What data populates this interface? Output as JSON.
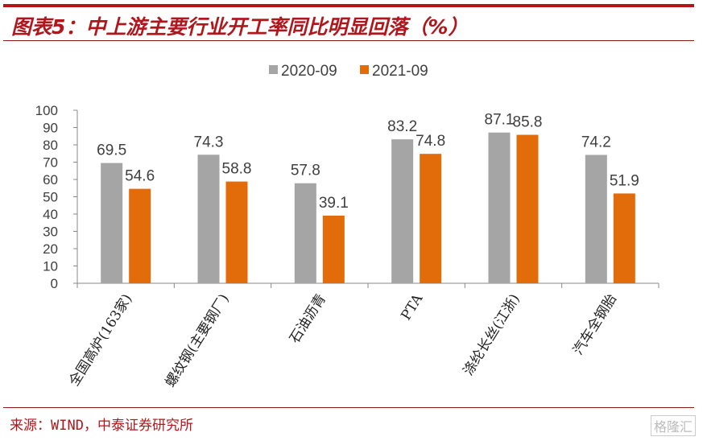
{
  "title": "图表5：中上游主要行业开工率同比明显回落（%）",
  "source": "来源：WIND，中泰证券研究所",
  "watermark": "格隆汇",
  "chart_data": {
    "type": "bar",
    "categories": [
      "全国高炉(163家)",
      "螺纹钢(主要钢厂)",
      "石油沥青",
      "PTA",
      "涤纶长丝(江浙)",
      "汽车全钢胎"
    ],
    "series": [
      {
        "name": "2020-09",
        "color": "#a5a5a5",
        "values": [
          69.5,
          74.3,
          57.8,
          83.2,
          87.1,
          74.2
        ]
      },
      {
        "name": "2021-09",
        "color": "#e36c0a",
        "values": [
          54.6,
          58.8,
          39.1,
          74.8,
          85.8,
          51.9
        ]
      }
    ],
    "ylim": [
      0,
      100
    ],
    "yticks": [
      0,
      10,
      20,
      30,
      40,
      50,
      60,
      70,
      80,
      90,
      100
    ],
    "grid": false,
    "legend": "top-center",
    "data_labels": true
  }
}
